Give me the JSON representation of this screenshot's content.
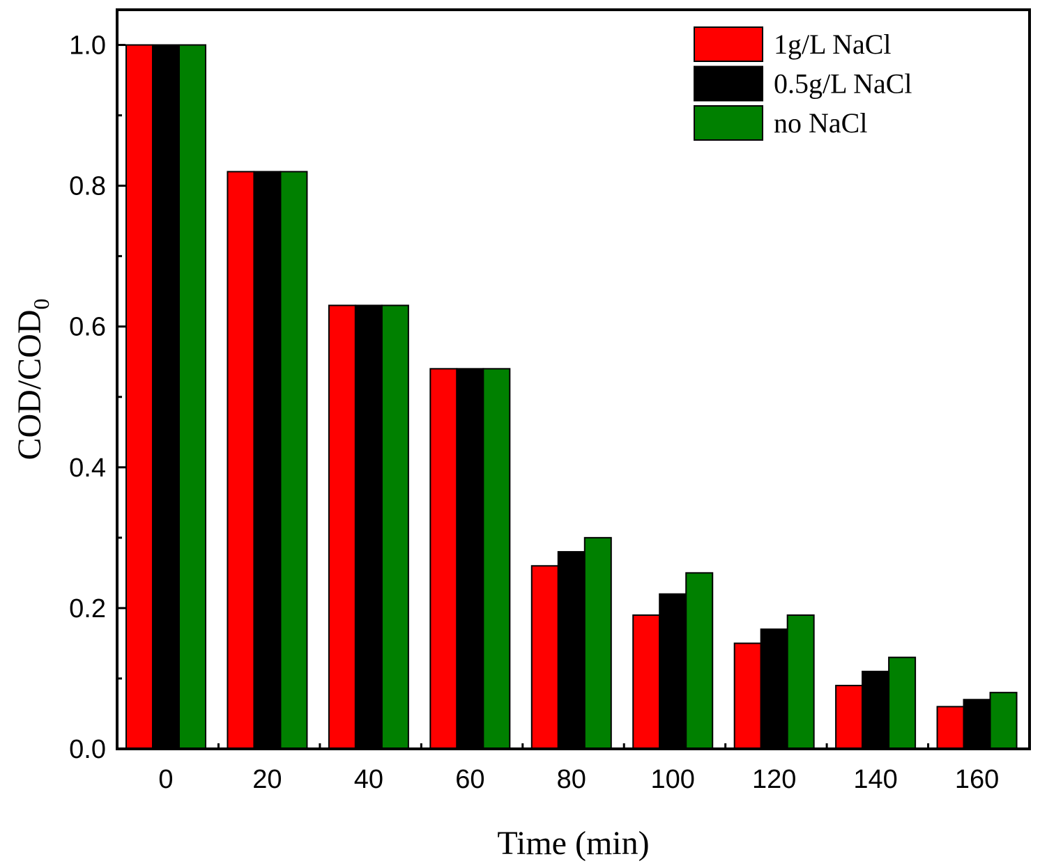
{
  "chart_data": {
    "type": "bar",
    "categories": [
      "0",
      "20",
      "40",
      "60",
      "80",
      "100",
      "120",
      "140",
      "160"
    ],
    "series": [
      {
        "name": "1g/L NaCl",
        "color": "#ff0000",
        "values": [
          1.0,
          0.82,
          0.63,
          0.54,
          0.26,
          0.19,
          0.15,
          0.09,
          0.06
        ]
      },
      {
        "name": "0.5g/L NaCl",
        "color": "#000000",
        "values": [
          1.0,
          0.82,
          0.63,
          0.54,
          0.28,
          0.22,
          0.17,
          0.11,
          0.07
        ]
      },
      {
        "name": "no NaCl",
        "color": "#008000",
        "values": [
          1.0,
          0.82,
          0.63,
          0.54,
          0.3,
          0.25,
          0.19,
          0.13,
          0.08
        ]
      }
    ],
    "xlabel": "Time (min)",
    "ylabel": {
      "main": "COD/COD",
      "subscript": "0"
    },
    "ylim": [
      0,
      1.05
    ],
    "yticks": [
      "0.0",
      "0.2",
      "0.4",
      "0.6",
      "0.8",
      "1.0"
    ],
    "legend_position": "top-right",
    "grid": false
  }
}
